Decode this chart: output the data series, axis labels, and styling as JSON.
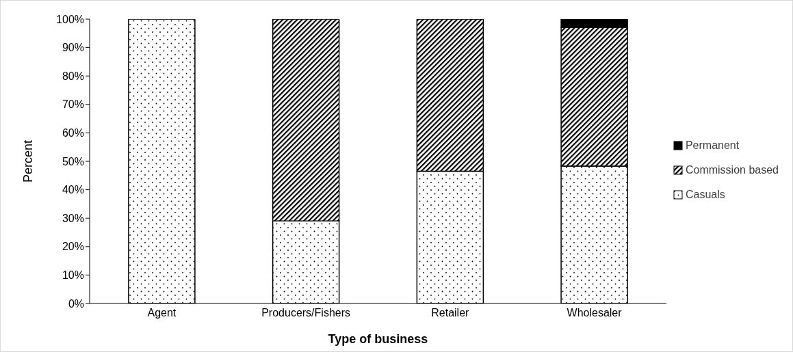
{
  "chart_data": {
    "type": "bar",
    "stacked": true,
    "xlabel": "Type of business",
    "ylabel": "Percent",
    "categories": [
      "Agent",
      "Producers/Fishers",
      "Retailer",
      "Wholesaler"
    ],
    "series": [
      {
        "name": "Casuals",
        "color": "#000000",
        "values": [
          100,
          29,
          46.5,
          48.3
        ]
      },
      {
        "name": "Commission based",
        "color": "#000000",
        "values": [
          0,
          71,
          53.5,
          48.8
        ]
      },
      {
        "name": "Permanent",
        "color": "#000000",
        "values": [
          0,
          0,
          0,
          2.9
        ]
      }
    ],
    "ylim": [
      0,
      100
    ],
    "yticks": [
      {
        "value": 0,
        "label": "0%"
      },
      {
        "value": 10,
        "label": "10%"
      },
      {
        "value": 20,
        "label": "20%"
      },
      {
        "value": 30,
        "label": "30%"
      },
      {
        "value": 40,
        "label": "40%"
      },
      {
        "value": 50,
        "label": "50%"
      },
      {
        "value": 60,
        "label": "60%"
      },
      {
        "value": 70,
        "label": "70%"
      },
      {
        "value": 80,
        "label": "80%"
      },
      {
        "value": 90,
        "label": "90%"
      },
      {
        "value": 100,
        "label": "100%"
      }
    ],
    "grid": false,
    "legend": "right"
  }
}
